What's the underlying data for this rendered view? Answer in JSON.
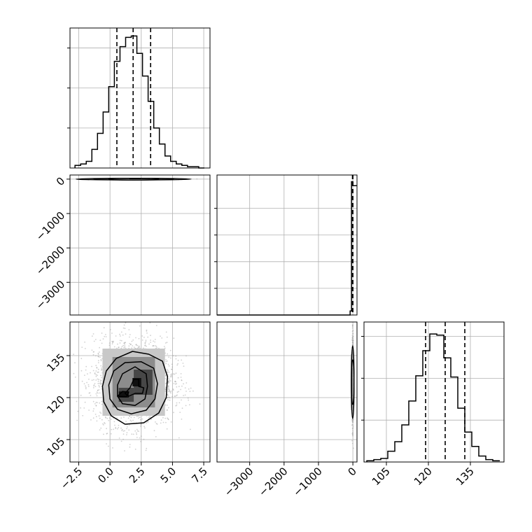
{
  "colors": {
    "line": "#000000",
    "grid": "#b0b0b0",
    "points": "#9a9a9a",
    "level_light": "#c8c8c8",
    "level_mid": "#8c8c8c",
    "level_dark": "#474747",
    "level_core": "#101010"
  },
  "chart_data": {
    "type": "corner",
    "grid": true,
    "parameters": [
      {
        "index": 0,
        "range": [
          -3.2,
          8.0
        ],
        "ticks": [
          -2.5,
          0.0,
          2.5,
          5.0,
          7.5
        ],
        "tick_labels": [
          "−2.5",
          "0.0",
          "2.5",
          "5.0",
          "7.5"
        ],
        "quantiles": [
          0.55,
          1.85,
          3.25
        ],
        "hist": {
          "edges": [
            -2.8,
            -2.35,
            -1.9,
            -1.45,
            -1.0,
            -0.55,
            -0.1,
            0.35,
            0.8,
            1.25,
            1.7,
            2.15,
            2.6,
            3.05,
            3.5,
            3.95,
            4.4,
            4.85,
            5.3,
            5.75,
            6.2,
            6.65,
            7.1,
            7.55
          ],
          "counts": [
            2,
            3,
            5,
            14,
            26,
            42,
            61,
            80,
            91,
            98,
            99,
            86,
            69,
            50,
            30,
            18,
            9,
            5,
            3,
            2,
            1,
            1,
            0
          ],
          "ymax": 105,
          "yticks": [
            30,
            60,
            90
          ]
        }
      },
      {
        "index": 1,
        "range": [
          -3950,
          120
        ],
        "ticks": [
          -3000,
          -2000,
          -1000,
          0
        ],
        "tick_labels": [
          "−3000",
          "−2000",
          "−1000",
          "0"
        ],
        "quantiles": [
          -12,
          -5,
          0
        ],
        "hist": {
          "edges": [
            -3950,
            -80,
            -40,
            0,
            120
          ],
          "counts": [
            0,
            3,
            100,
            97
          ],
          "ymax": 105,
          "yticks": [
            20,
            40,
            60,
            80
          ]
        }
      },
      {
        "index": 2,
        "range": [
          97,
          147
        ],
        "ticks": [
          105,
          120,
          135
        ],
        "tick_labels": [
          "105",
          "120",
          "135"
        ],
        "quantiles": [
          119,
          126,
          133
        ],
        "hist": {
          "edges": [
            98,
            100.5,
            103,
            105.5,
            108,
            110.5,
            113,
            115.5,
            118,
            120.5,
            123,
            125.5,
            128,
            130.5,
            133,
            135.5,
            138,
            140.5,
            143,
            145.5
          ],
          "counts": [
            1,
            2,
            3,
            9,
            17,
            31,
            51,
            72,
            93,
            107,
            106,
            87,
            71,
            45,
            25,
            13,
            5,
            2,
            1
          ],
          "ymax": 117,
          "yticks": [
            35,
            70,
            105
          ]
        }
      }
    ],
    "scatter_panels": [
      {
        "x_param": 0,
        "y_param": 1,
        "center": [
          1.9,
          0
        ],
        "spread": [
          1.6,
          6
        ],
        "n_points": 600,
        "density_cells": [
          {
            "x": 1.0,
            "y": 0,
            "w": 1.1,
            "h": 26,
            "level": "level_mid"
          },
          {
            "x": 2.1,
            "y": 0,
            "w": 1.1,
            "h": 26,
            "level": "level_dark"
          },
          {
            "x": 1.55,
            "y": 0,
            "w": 0.9,
            "h": 20,
            "level": "level_core"
          }
        ],
        "contours": [
          {
            "cx": 1.9,
            "cy": 0,
            "rx": 4.6,
            "ry": 12
          },
          {
            "cx": 1.9,
            "cy": 0,
            "rx": 3.2,
            "ry": 20
          },
          {
            "cx": 1.9,
            "cy": 0,
            "rx": 2.0,
            "ry": 26
          }
        ]
      },
      {
        "x_param": 0,
        "y_param": 2,
        "center": [
          1.9,
          125.5
        ],
        "spread": [
          1.6,
          7.8
        ],
        "n_points": 2200,
        "density_cells": [
          {
            "x": -0.6,
            "y": 113.5,
            "w": 5.0,
            "h": 24.0,
            "level": "level_light"
          },
          {
            "x": 0.2,
            "y": 116.5,
            "w": 3.4,
            "h": 18.0,
            "level": "level_mid"
          },
          {
            "x": 0.7,
            "y": 118.5,
            "w": 1.2,
            "h": 5.0,
            "level": "level_dark"
          },
          {
            "x": 1.9,
            "y": 121.0,
            "w": 1.5,
            "h": 9.0,
            "level": "level_dark"
          },
          {
            "x": 0.7,
            "y": 120.0,
            "w": 0.8,
            "h": 2.2,
            "level": "level_core"
          },
          {
            "x": 1.8,
            "y": 124.0,
            "w": 0.7,
            "h": 3.0,
            "level": "level_core"
          }
        ],
        "contours": [
          {
            "points": [
              [
                -0.6,
                124
              ],
              [
                -0.3,
                129.5
              ],
              [
                0.5,
                134
              ],
              [
                1.8,
                136.5
              ],
              [
                3.1,
                135.5
              ],
              [
                4.2,
                133
              ],
              [
                4.6,
                127.5
              ],
              [
                4.5,
                120
              ],
              [
                3.9,
                114.5
              ],
              [
                2.7,
                111
              ],
              [
                1.2,
                110.5
              ],
              [
                0.1,
                113.5
              ],
              [
                -0.5,
                118.5
              ]
            ]
          },
          {
            "points": [
              [
                -0.1,
                124.5
              ],
              [
                0.3,
                129.5
              ],
              [
                1.2,
                132.5
              ],
              [
                2.5,
                132.8
              ],
              [
                3.5,
                130.5
              ],
              [
                3.8,
                125
              ],
              [
                3.6,
                119.5
              ],
              [
                2.9,
                115.5
              ],
              [
                1.7,
                114.2
              ],
              [
                0.6,
                115.8
              ],
              [
                0.0,
                119.5
              ]
            ]
          },
          {
            "points": [
              [
                0.6,
                124.5
              ],
              [
                1.0,
                128.5
              ],
              [
                2.0,
                131
              ],
              [
                2.9,
                128.5
              ],
              [
                3.0,
                124
              ],
              [
                2.8,
                119.5
              ],
              [
                2.0,
                117.2
              ],
              [
                1.0,
                117.8
              ],
              [
                0.6,
                120.5
              ]
            ]
          },
          {
            "points": [
              [
                1.2,
                121.5
              ],
              [
                1.6,
                123.5
              ],
              [
                1.9,
                126.5
              ],
              [
                2.3,
                126.5
              ],
              [
                2.3,
                124
              ],
              [
                2.7,
                123.5
              ],
              [
                2.6,
                121.5
              ],
              [
                2.0,
                121.5
              ],
              [
                1.5,
                120.5
              ]
            ]
          },
          {
            "points": [
              [
                0.6,
                120.5
              ],
              [
                1.0,
                122.2
              ],
              [
                1.5,
                122.0
              ],
              [
                1.3,
                120.3
              ]
            ]
          }
        ]
      },
      {
        "x_param": 1,
        "y_param": 2,
        "center": [
          -5,
          125.5
        ],
        "spread": [
          8,
          7.8
        ],
        "n_points": 700,
        "density_cells": [
          {
            "x": -60,
            "y": 115.5,
            "w": 45,
            "h": 20,
            "level": "level_light"
          },
          {
            "x": -50,
            "y": 118.5,
            "w": 35,
            "h": 14,
            "level": "level_mid"
          },
          {
            "x": -45,
            "y": 120.5,
            "w": 28,
            "h": 10,
            "level": "level_dark"
          }
        ],
        "contours": [
          {
            "cx": -5,
            "cy": 125.5,
            "rx": 26,
            "ry": 13
          },
          {
            "cx": -5,
            "cy": 125.5,
            "rx": 18,
            "ry": 8
          }
        ]
      }
    ]
  }
}
